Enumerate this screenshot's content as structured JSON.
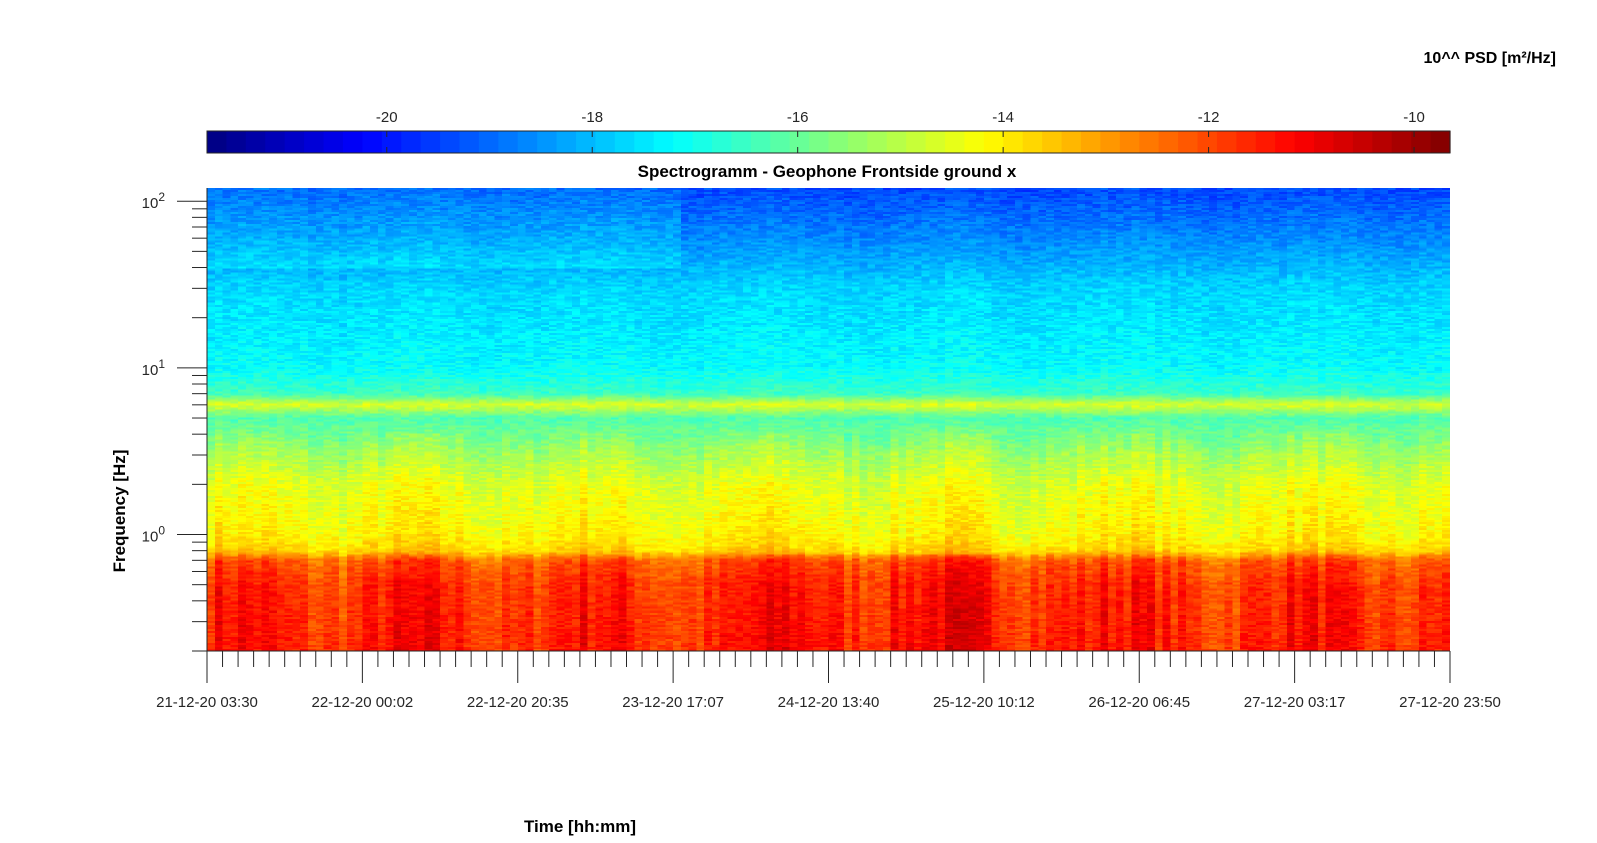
{
  "chart_data": {
    "type": "heatmap",
    "title": "Spectrogramm - Geophone Frontside ground x",
    "xlabel": "Time [hh:mm]",
    "ylabel": "Frequency [Hz]",
    "y_scale": "log",
    "ylim": [
      0.2,
      120
    ],
    "y_tick_labels": [
      {
        "value": 1,
        "base": "10",
        "exp": "0"
      },
      {
        "value": 10,
        "base": "10",
        "exp": "1"
      },
      {
        "value": 100,
        "base": "10",
        "exp": "2"
      }
    ],
    "x_tick_labels": [
      "21-12-20 03:30",
      "22-12-20 00:02",
      "22-12-20 20:35",
      "23-12-20 17:07",
      "24-12-20 13:40",
      "25-12-20 10:12",
      "26-12-20 06:45",
      "27-12-20 03:17",
      "27-12-20 23:50"
    ],
    "colorbar": {
      "label": "10^^ PSD [m²/Hz]",
      "range": [
        -21.75,
        -9.65
      ],
      "ticks": [
        -20,
        -18,
        -16,
        -14,
        -12,
        -10
      ],
      "tick_labels": [
        "-20",
        "-18",
        "-16",
        "-14",
        "-12",
        "-10"
      ],
      "colormap": "jet",
      "placement": "top"
    },
    "spectrum_profile": [
      {
        "f": 0.2,
        "psd": -11.5
      },
      {
        "f": 0.5,
        "psd": -11.7
      },
      {
        "f": 0.7,
        "psd": -12.2
      },
      {
        "f": 0.8,
        "psd": -13.7
      },
      {
        "f": 1.0,
        "psd": -14.1
      },
      {
        "f": 2.0,
        "psd": -14.5
      },
      {
        "f": 3.0,
        "psd": -15.2
      },
      {
        "f": 5.0,
        "psd": -16.3
      },
      {
        "f": 6.0,
        "psd": -14.6
      },
      {
        "f": 7.0,
        "psd": -16.5
      },
      {
        "f": 10.0,
        "psd": -17.2
      },
      {
        "f": 30.0,
        "psd": -17.7
      },
      {
        "f": 60.0,
        "psd": -18.6
      },
      {
        "f": 120.0,
        "psd": -19.4
      }
    ]
  }
}
